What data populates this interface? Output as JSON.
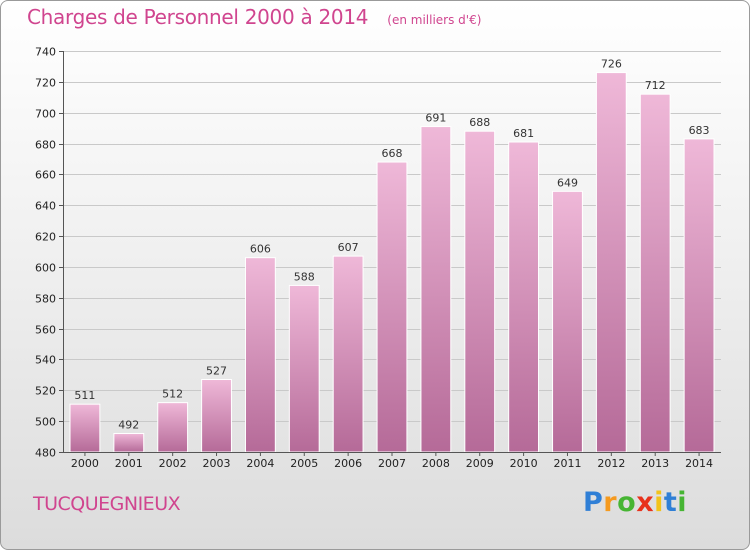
{
  "chart_data": {
    "type": "bar",
    "title": "Charges de Personnel 2000 à 2014",
    "subtitle": "(en milliers d'€)",
    "categories": [
      "2000",
      "2001",
      "2002",
      "2003",
      "2004",
      "2005",
      "2006",
      "2007",
      "2008",
      "2009",
      "2010",
      "2011",
      "2012",
      "2013",
      "2014"
    ],
    "values": [
      511,
      492,
      512,
      527,
      606,
      588,
      607,
      668,
      691,
      688,
      681,
      649,
      726,
      712,
      683
    ],
    "ylim": [
      480,
      740
    ],
    "yticks": [
      480,
      500,
      520,
      540,
      560,
      580,
      600,
      620,
      640,
      660,
      680,
      700,
      720,
      740
    ],
    "grid": true,
    "xlabel": "",
    "ylabel": ""
  },
  "location": "TUCQUEGNIEUX",
  "brand": {
    "letters": [
      "P",
      "r",
      "o",
      "x",
      "i",
      "t",
      "i"
    ],
    "colors": [
      "#2f7fd6",
      "#f59a1f",
      "#46b533",
      "#e8321c",
      "#f2c31a",
      "#2f7fd6",
      "#46b533"
    ]
  },
  "colors": {
    "bar_light": "#efb8d8",
    "bar_dark": "#b56a98",
    "title": "#d0458f"
  }
}
